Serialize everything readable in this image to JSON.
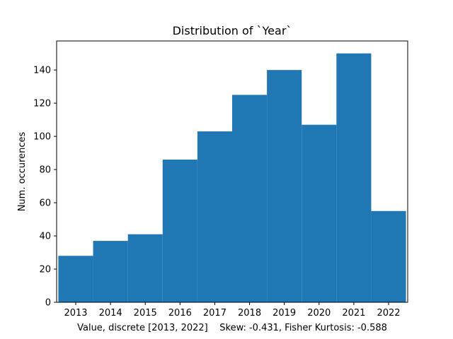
{
  "chart_data": {
    "type": "bar",
    "title": "Distribution of `Year`",
    "xlabel": "Value, discrete [2013, 2022]    Skew: -0.431, Fisher Kurtosis: -0.588",
    "ylabel": "Num. occurences",
    "categories": [
      "2013",
      "2014",
      "2015",
      "2016",
      "2017",
      "2018",
      "2019",
      "2020",
      "2021",
      "2022"
    ],
    "values": [
      28,
      37,
      41,
      86,
      103,
      125,
      140,
      107,
      150,
      55
    ],
    "xlim": [
      2012.45,
      2022.55
    ],
    "ylim": [
      0,
      157.5
    ],
    "yticks": [
      0,
      20,
      40,
      60,
      80,
      100,
      120,
      140
    ],
    "grid": false,
    "legend": "none",
    "bar_color": "#1f77b4"
  }
}
